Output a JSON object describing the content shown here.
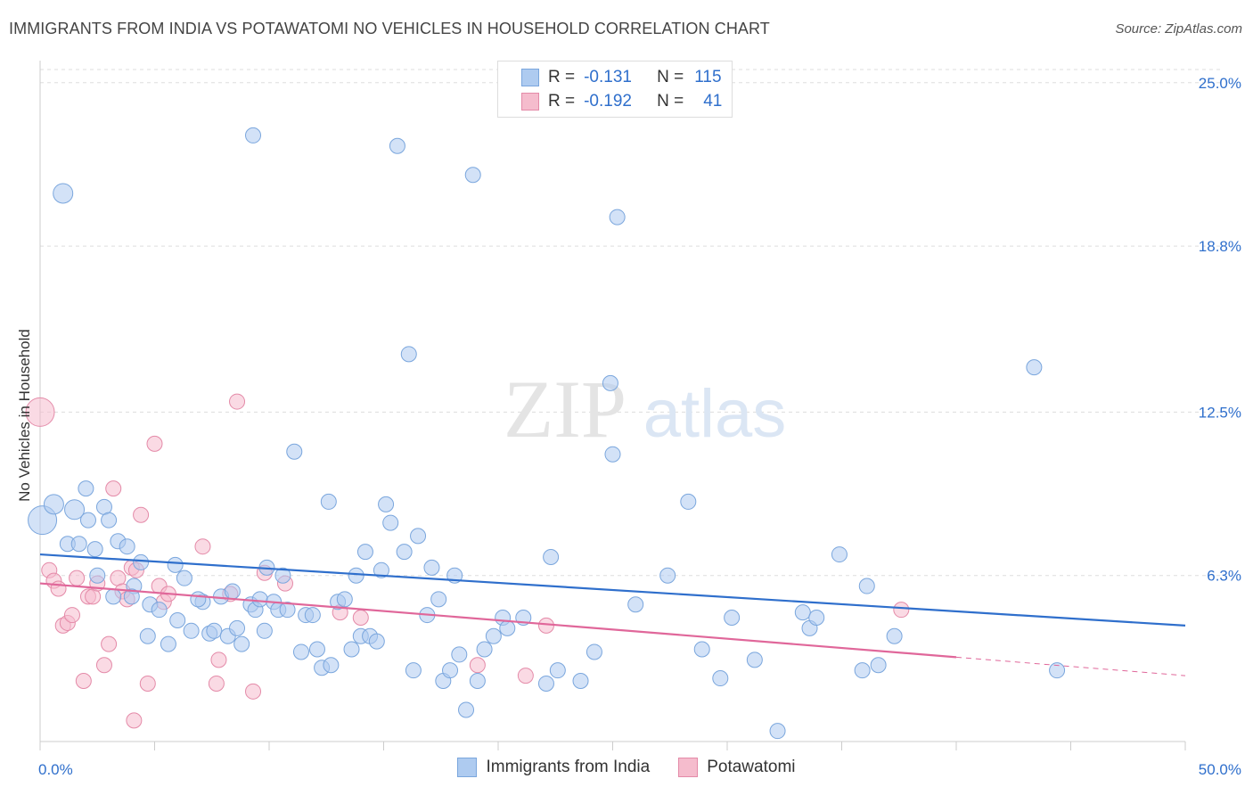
{
  "header": {
    "title": "IMMIGRANTS FROM INDIA VS POTAWATOMI NO VEHICLES IN HOUSEHOLD CORRELATION CHART",
    "source": "Source: ZipAtlas.com"
  },
  "watermark": {
    "zip": "ZIP",
    "atlas": "atlas"
  },
  "legend_top": {
    "r_label": "R =",
    "n_label": "N =",
    "series1": {
      "r": "-0.131",
      "n": "115"
    },
    "series2": {
      "r": "-0.192",
      "n": "41"
    }
  },
  "colors": {
    "blue_fill": "#aecbf0",
    "blue_stroke": "#7aa6dd",
    "blue_line": "#2f6fcc",
    "pink_fill": "#f5bccd",
    "pink_stroke": "#e48aa8",
    "pink_line": "#e0679a",
    "grid": "#dddddd",
    "tick_label": "#2f6fcc"
  },
  "chart_data": {
    "type": "scatter",
    "title": "IMMIGRANTS FROM INDIA VS POTAWATOMI NO VEHICLES IN HOUSEHOLD CORRELATION CHART",
    "xlabel": "",
    "ylabel": "No Vehicles in Household",
    "xlim": [
      0,
      50
    ],
    "ylim": [
      0,
      25.5
    ],
    "x_tick_labels": [
      "0.0%",
      "50.0%"
    ],
    "y_ticks": [
      6.3,
      12.5,
      18.8,
      25.0
    ],
    "y_tick_labels": [
      "6.3%",
      "12.5%",
      "18.8%",
      "25.0%"
    ],
    "grid": true,
    "legend_placement": "top-center",
    "series": [
      {
        "name": "Immigrants from India",
        "r": -0.131,
        "n": 115,
        "trend": {
          "x0": 0,
          "y0": 7.1,
          "x1": 50,
          "y1": 4.4
        },
        "points": [
          [
            0.1,
            8.4,
            3
          ],
          [
            0.6,
            9.0,
            2
          ],
          [
            1.0,
            20.8,
            2
          ],
          [
            1.5,
            8.8,
            2
          ],
          [
            2.0,
            9.6,
            1
          ],
          [
            1.2,
            7.5,
            1
          ],
          [
            1.7,
            7.5,
            1
          ],
          [
            2.1,
            8.4,
            1
          ],
          [
            2.4,
            7.3,
            1
          ],
          [
            2.8,
            8.9,
            1
          ],
          [
            3.0,
            8.4,
            1
          ],
          [
            2.5,
            6.3,
            1
          ],
          [
            3.4,
            7.6,
            1
          ],
          [
            3.8,
            7.4,
            1
          ],
          [
            3.2,
            5.5,
            1
          ],
          [
            4.1,
            5.9,
            1
          ],
          [
            4.4,
            6.8,
            1
          ],
          [
            4.0,
            5.5,
            1
          ],
          [
            4.8,
            5.2,
            1
          ],
          [
            5.2,
            5.0,
            1
          ],
          [
            4.7,
            4.0,
            1
          ],
          [
            5.6,
            3.7,
            1
          ],
          [
            5.9,
            6.7,
            1
          ],
          [
            6.3,
            6.2,
            1
          ],
          [
            6.0,
            4.6,
            1
          ],
          [
            6.6,
            4.2,
            1
          ],
          [
            7.1,
            5.3,
            1
          ],
          [
            7.4,
            4.1,
            1
          ],
          [
            6.9,
            5.4,
            1
          ],
          [
            7.6,
            4.2,
            1
          ],
          [
            7.9,
            5.5,
            1
          ],
          [
            8.2,
            4.0,
            1
          ],
          [
            8.4,
            5.7,
            1
          ],
          [
            8.6,
            4.3,
            1
          ],
          [
            8.8,
            3.7,
            1
          ],
          [
            9.2,
            5.2,
            1
          ],
          [
            9.4,
            5.0,
            1
          ],
          [
            9.6,
            5.4,
            1
          ],
          [
            9.3,
            23.0,
            1
          ],
          [
            9.8,
            4.2,
            1
          ],
          [
            9.9,
            6.6,
            1
          ],
          [
            10.2,
            5.3,
            1
          ],
          [
            10.4,
            5.0,
            1
          ],
          [
            10.6,
            6.3,
            1
          ],
          [
            10.8,
            5.0,
            1
          ],
          [
            11.1,
            11.0,
            1
          ],
          [
            11.4,
            3.4,
            1
          ],
          [
            11.6,
            4.8,
            1
          ],
          [
            11.9,
            4.8,
            1
          ],
          [
            12.1,
            3.5,
            1
          ],
          [
            12.3,
            2.8,
            1
          ],
          [
            12.6,
            9.1,
            1
          ],
          [
            12.7,
            2.9,
            1
          ],
          [
            13.0,
            5.3,
            1
          ],
          [
            13.3,
            5.4,
            1
          ],
          [
            13.6,
            3.5,
            1
          ],
          [
            13.8,
            6.3,
            1
          ],
          [
            14.0,
            4.0,
            1
          ],
          [
            14.2,
            7.2,
            1
          ],
          [
            14.4,
            4.0,
            1
          ],
          [
            14.7,
            3.8,
            1
          ],
          [
            14.9,
            6.5,
            1
          ],
          [
            15.1,
            9.0,
            1
          ],
          [
            15.3,
            8.3,
            1
          ],
          [
            15.6,
            22.6,
            1
          ],
          [
            15.9,
            7.2,
            1
          ],
          [
            16.1,
            14.7,
            1
          ],
          [
            16.3,
            2.7,
            1
          ],
          [
            16.5,
            7.8,
            1
          ],
          [
            16.9,
            4.8,
            1
          ],
          [
            17.1,
            6.6,
            1
          ],
          [
            17.4,
            5.4,
            1
          ],
          [
            17.6,
            2.3,
            1
          ],
          [
            17.9,
            2.7,
            1
          ],
          [
            18.1,
            6.3,
            1
          ],
          [
            18.3,
            3.3,
            1
          ],
          [
            18.6,
            1.2,
            1
          ],
          [
            18.9,
            21.5,
            1
          ],
          [
            19.1,
            2.3,
            1
          ],
          [
            19.4,
            3.5,
            1
          ],
          [
            19.8,
            4.0,
            1
          ],
          [
            20.2,
            4.7,
            1
          ],
          [
            20.4,
            4.3,
            1
          ],
          [
            21.1,
            4.7,
            1
          ],
          [
            22.1,
            2.2,
            1
          ],
          [
            22.3,
            7.0,
            1
          ],
          [
            22.6,
            2.7,
            1
          ],
          [
            23.6,
            2.3,
            1
          ],
          [
            24.2,
            3.4,
            1
          ],
          [
            25.0,
            10.9,
            1
          ],
          [
            24.9,
            13.6,
            1
          ],
          [
            25.2,
            19.9,
            1
          ],
          [
            27.4,
            6.3,
            1
          ],
          [
            28.3,
            9.1,
            1
          ],
          [
            28.9,
            3.5,
            1
          ],
          [
            29.7,
            2.4,
            1
          ],
          [
            30.2,
            4.7,
            1
          ],
          [
            31.2,
            3.1,
            1
          ],
          [
            32.2,
            0.4,
            1
          ],
          [
            33.3,
            4.9,
            1
          ],
          [
            33.6,
            4.3,
            1
          ],
          [
            33.9,
            4.7,
            1
          ],
          [
            34.9,
            7.1,
            1
          ],
          [
            35.9,
            2.7,
            1
          ],
          [
            36.1,
            5.9,
            1
          ],
          [
            36.6,
            2.9,
            1
          ],
          [
            37.3,
            4.0,
            1
          ],
          [
            43.4,
            14.2,
            1
          ],
          [
            44.4,
            2.7,
            1
          ],
          [
            26.0,
            5.2,
            1
          ]
        ]
      },
      {
        "name": "Potawatomi",
        "r": -0.192,
        "n": 41,
        "trend": {
          "x0": 0,
          "y0": 6.0,
          "x1": 40,
          "y1": 3.2,
          "dashed_to_x": 50,
          "dashed_to_y": 2.5
        },
        "points": [
          [
            0.0,
            12.5,
            3
          ],
          [
            0.4,
            6.5,
            1
          ],
          [
            0.6,
            6.1,
            1
          ],
          [
            0.8,
            5.8,
            1
          ],
          [
            1.0,
            4.4,
            1
          ],
          [
            1.2,
            4.5,
            1
          ],
          [
            1.4,
            4.8,
            1
          ],
          [
            1.6,
            6.2,
            1
          ],
          [
            1.9,
            2.3,
            1
          ],
          [
            2.1,
            5.5,
            1
          ],
          [
            2.3,
            5.5,
            1
          ],
          [
            2.5,
            6.0,
            1
          ],
          [
            2.8,
            2.9,
            1
          ],
          [
            3.0,
            3.7,
            1
          ],
          [
            3.2,
            9.6,
            1
          ],
          [
            3.4,
            6.2,
            1
          ],
          [
            3.6,
            5.7,
            1
          ],
          [
            3.8,
            5.4,
            1
          ],
          [
            4.0,
            6.6,
            1
          ],
          [
            4.2,
            6.5,
            1
          ],
          [
            4.4,
            8.6,
            1
          ],
          [
            4.7,
            2.2,
            1
          ],
          [
            5.0,
            11.3,
            1
          ],
          [
            5.2,
            5.9,
            1
          ],
          [
            5.4,
            5.3,
            1
          ],
          [
            5.6,
            5.6,
            1
          ],
          [
            7.1,
            7.4,
            1
          ],
          [
            7.7,
            2.2,
            1
          ],
          [
            7.8,
            3.1,
            1
          ],
          [
            8.3,
            5.6,
            1
          ],
          [
            8.6,
            12.9,
            1
          ],
          [
            9.3,
            1.9,
            1
          ],
          [
            9.8,
            6.4,
            1
          ],
          [
            10.7,
            6.0,
            1
          ],
          [
            13.1,
            4.9,
            1
          ],
          [
            14.0,
            4.7,
            1
          ],
          [
            19.1,
            2.9,
            1
          ],
          [
            21.2,
            2.5,
            1
          ],
          [
            22.1,
            4.4,
            1
          ],
          [
            37.6,
            5.0,
            1
          ],
          [
            4.1,
            0.8,
            1
          ]
        ]
      }
    ]
  },
  "legend_bottom": {
    "series1": "Immigrants from India",
    "series2": "Potawatomi"
  }
}
